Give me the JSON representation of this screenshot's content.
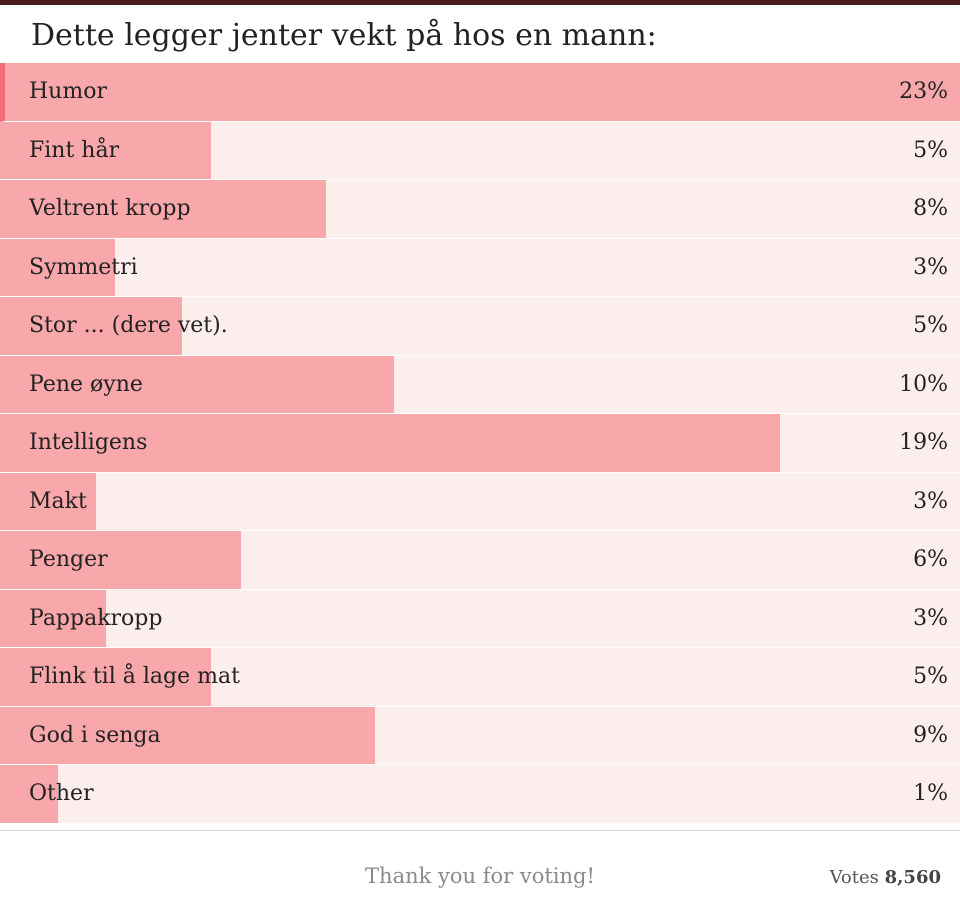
{
  "poll": {
    "title": "Dette legger jenter vekt på hos en mann:",
    "options": [
      {
        "label": "Humor",
        "percent_text": "23%",
        "percent": 23,
        "fill_fraction": 1.0
      },
      {
        "label": "Fint hår",
        "percent_text": "5%",
        "percent": 5,
        "fill_fraction": 0.22
      },
      {
        "label": "Veltrent kropp",
        "percent_text": "8%",
        "percent": 8,
        "fill_fraction": 0.34
      },
      {
        "label": "Symmetri",
        "percent_text": "3%",
        "percent": 3,
        "fill_fraction": 0.12
      },
      {
        "label": "Stor ... (dere vet).",
        "percent_text": "5%",
        "percent": 5,
        "fill_fraction": 0.19
      },
      {
        "label": "Pene øyne",
        "percent_text": "10%",
        "percent": 10,
        "fill_fraction": 0.41
      },
      {
        "label": "Intelligens",
        "percent_text": "19%",
        "percent": 19,
        "fill_fraction": 0.813
      },
      {
        "label": "Makt",
        "percent_text": "3%",
        "percent": 3,
        "fill_fraction": 0.1
      },
      {
        "label": "Penger",
        "percent_text": "6%",
        "percent": 6,
        "fill_fraction": 0.251
      },
      {
        "label": "Pappakropp",
        "percent_text": "3%",
        "percent": 3,
        "fill_fraction": 0.11
      },
      {
        "label": "Flink til å lage mat",
        "percent_text": "5%",
        "percent": 5,
        "fill_fraction": 0.22
      },
      {
        "label": "God i senga",
        "percent_text": "9%",
        "percent": 9,
        "fill_fraction": 0.391
      },
      {
        "label": "Other",
        "percent_text": "1%",
        "percent": 1,
        "fill_fraction": 0.06
      }
    ],
    "footer": {
      "thanks": "Thank you for voting!",
      "votes_label": "Votes",
      "votes_count": "8,560"
    }
  },
  "colors": {
    "fill": "#f8a7ab",
    "track": "#fdeeee",
    "accent": "#ee6f78",
    "top_border": "#4a1c1c"
  }
}
